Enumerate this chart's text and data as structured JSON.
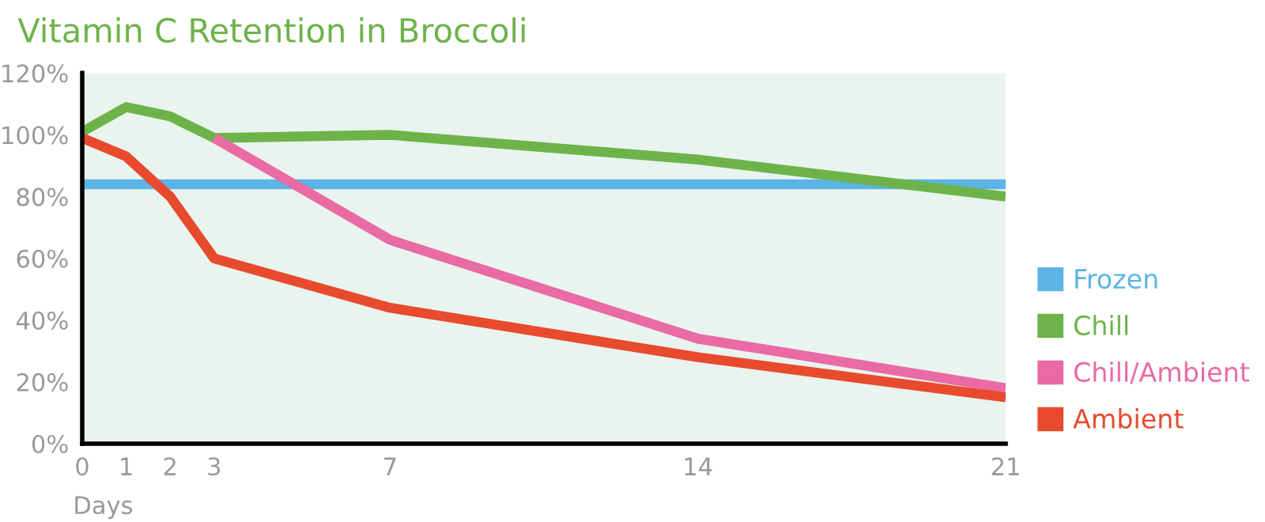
{
  "chart_data": {
    "type": "line",
    "title": "Vitamin C Retention in Broccoli",
    "xlabel": "Days",
    "xlim": [
      0,
      21
    ],
    "ylim": [
      0,
      120
    ],
    "xticks": [
      0,
      1,
      2,
      3,
      7,
      14,
      21
    ],
    "yticks": [
      {
        "value": 0,
        "label": "0%"
      },
      {
        "value": 20,
        "label": "20%"
      },
      {
        "value": 40,
        "label": "40%"
      },
      {
        "value": 60,
        "label": "60%"
      },
      {
        "value": 80,
        "label": "80%"
      },
      {
        "value": 100,
        "label": "100%"
      },
      {
        "value": 120,
        "label": "120%"
      }
    ],
    "series": [
      {
        "name": "Frozen",
        "color": "#5bb4e5",
        "x": [
          0,
          21
        ],
        "values": [
          84,
          84
        ]
      },
      {
        "name": "Chill",
        "color": "#6db34a",
        "x": [
          0,
          1,
          2,
          3,
          7,
          14,
          21
        ],
        "values": [
          101,
          109,
          106,
          99,
          100,
          92,
          80
        ]
      },
      {
        "name": "Chill/Ambient",
        "color": "#e96aa5",
        "x": [
          3,
          7,
          14,
          21
        ],
        "values": [
          99,
          66,
          34,
          18
        ]
      },
      {
        "name": "Ambient",
        "color": "#e84a2e",
        "x": [
          0,
          1,
          2,
          3,
          7,
          14,
          21
        ],
        "values": [
          99,
          93,
          80,
          60,
          44,
          28,
          15
        ]
      }
    ],
    "legend": "right",
    "grid": false,
    "marker": "none",
    "line_style": "solid"
  }
}
